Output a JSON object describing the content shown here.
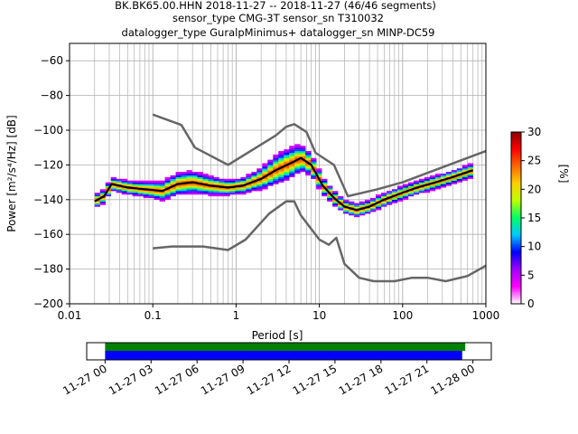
{
  "chart_data": {
    "type": "heatmap",
    "title_lines": [
      "BK.BK65.00.HHN   2018-11-27 -- 2018-11-27  (46/46 segments)",
      "sensor_type CMG-3T sensor_sn T310032",
      "datalogger_type GuralpMinimus+ datalogger_sn MINP-DC59"
    ],
    "xlabel": "Period [s]",
    "ylabel": "Power [m²/s⁴/Hz] [dB]",
    "xscale": "log",
    "xlim": [
      0.01,
      1000
    ],
    "ylim": [
      -200,
      -50
    ],
    "xtick_values": [
      0.01,
      0.1,
      1,
      10,
      100,
      1000
    ],
    "xtick_labels": [
      "0.01",
      "0.1",
      "1",
      "10",
      "100",
      "1000"
    ],
    "ytick_values": [
      -200,
      -180,
      -160,
      -140,
      -120,
      -100,
      -80,
      -60
    ],
    "ytick_labels": [
      "−200",
      "−180",
      "−160",
      "−140",
      "−120",
      "−100",
      "−80",
      "−60"
    ],
    "grid": true,
    "mean_psd": [
      [
        0.02,
        -141
      ],
      [
        0.026,
        -138
      ],
      [
        0.032,
        -131
      ],
      [
        0.05,
        -133
      ],
      [
        0.08,
        -134
      ],
      [
        0.13,
        -135
      ],
      [
        0.2,
        -131
      ],
      [
        0.3,
        -130
      ],
      [
        0.5,
        -132
      ],
      [
        0.8,
        -133
      ],
      [
        1.2,
        -132
      ],
      [
        2,
        -128
      ],
      [
        3,
        -123
      ],
      [
        5,
        -118
      ],
      [
        6,
        -116
      ],
      [
        8,
        -120
      ],
      [
        11,
        -132
      ],
      [
        15,
        -139
      ],
      [
        20,
        -144
      ],
      [
        28,
        -146
      ],
      [
        40,
        -144
      ],
      [
        60,
        -140
      ],
      [
        100,
        -136
      ],
      [
        150,
        -133
      ],
      [
        250,
        -130
      ],
      [
        400,
        -127
      ],
      [
        700,
        -123
      ]
    ],
    "nhnm": [
      [
        0.1,
        -91
      ],
      [
        0.22,
        -97
      ],
      [
        0.32,
        -110
      ],
      [
        0.8,
        -120
      ],
      [
        3,
        -103
      ],
      [
        4,
        -98
      ],
      [
        5,
        -96.5
      ],
      [
        7,
        -101
      ],
      [
        9,
        -113
      ],
      [
        15,
        -120
      ],
      [
        22,
        -138
      ],
      [
        50,
        -134
      ],
      [
        100,
        -130
      ],
      [
        1000,
        -112
      ]
    ],
    "nlnm": [
      [
        0.1,
        -168
      ],
      [
        0.17,
        -167
      ],
      [
        0.4,
        -167
      ],
      [
        0.8,
        -169
      ],
      [
        1.3,
        -163
      ],
      [
        2.5,
        -148
      ],
      [
        4,
        -141
      ],
      [
        5,
        -141
      ],
      [
        6,
        -149
      ],
      [
        10,
        -163
      ],
      [
        13,
        -166
      ],
      [
        16,
        -162
      ],
      [
        20,
        -177
      ],
      [
        30,
        -185
      ],
      [
        45,
        -187
      ],
      [
        80,
        -187
      ],
      [
        130,
        -185
      ],
      [
        200,
        -185
      ],
      [
        330,
        -187
      ],
      [
        600,
        -184
      ],
      [
        1000,
        -178
      ]
    ],
    "colorbar": {
      "label": "[%]",
      "range": [
        0,
        30
      ],
      "tick_values": [
        0,
        5,
        10,
        15,
        20,
        25,
        30
      ],
      "tick_labels": [
        "0",
        "5",
        "10",
        "15",
        "20",
        "25",
        "30"
      ],
      "colormap": [
        "#ffffff",
        "#ff00ff",
        "#a000ff",
        "#0000ff",
        "#00c8ff",
        "#00ff66",
        "#bbff00",
        "#ffd000",
        "#ff6a00",
        "#ff0000",
        "#8b0000"
      ]
    },
    "timeline": {
      "tick_labels": [
        "11-27 00",
        "11-27 03",
        "11-27 06",
        "11-27 09",
        "11-27 12",
        "11-27 15",
        "11-27 18",
        "11-27 21",
        "11-28 00"
      ],
      "tick_hours": [
        0,
        3,
        6,
        9,
        12,
        15,
        18,
        21,
        24
      ],
      "range_hours": [
        -1.2,
        25.2
      ],
      "green_bar_hours": [
        0,
        23.5
      ],
      "blue_bar_hours": [
        0,
        23.3
      ],
      "green_color": "#008000",
      "blue_color": "#0000ff"
    },
    "line_colors": {
      "mean": "#000000",
      "noise_model": "#666666"
    }
  }
}
